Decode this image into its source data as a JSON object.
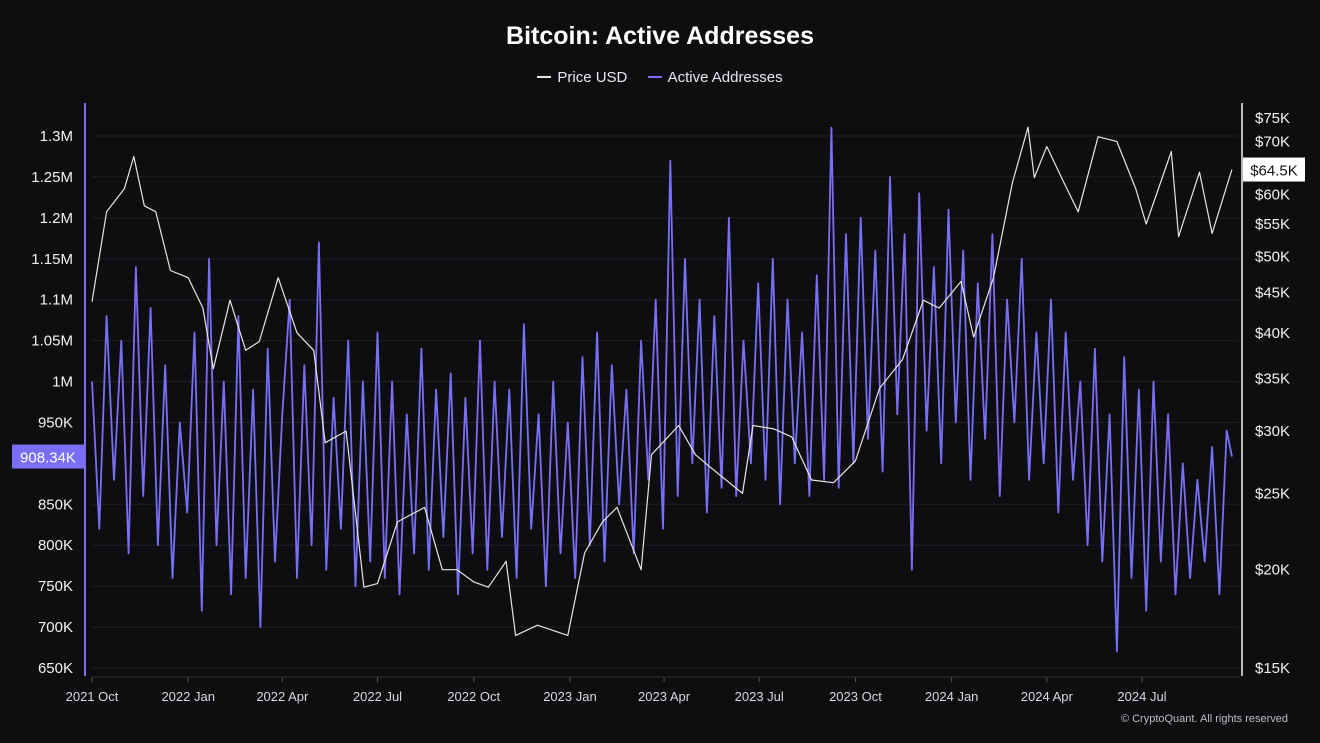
{
  "chart_data": {
    "type": "line",
    "title": "Bitcoin: Active Addresses",
    "legend": [
      "Price USD",
      "Active Addresses"
    ],
    "legend_placement": "top-center",
    "grid": "horizontal",
    "colors": {
      "price": "#e6e6e6",
      "addresses": "#7b6ef6",
      "background": "#0e0e11"
    },
    "x_ticks": [
      "2021 Oct",
      "2022 Jan",
      "2022 Apr",
      "2022 Jul",
      "2022 Oct",
      "2023 Jan",
      "2023 Apr",
      "2023 Jul",
      "2023 Oct",
      "2024 Jan",
      "2024 Apr",
      "2024 Jul"
    ],
    "x_tick_dates": [
      "2021-10-01",
      "2022-01-01",
      "2022-04-01",
      "2022-07-01",
      "2022-10-01",
      "2023-01-01",
      "2023-04-01",
      "2023-07-01",
      "2023-10-01",
      "2024-01-01",
      "2024-04-01",
      "2024-07-01"
    ],
    "y_left": {
      "ticks": [
        "650K",
        "700K",
        "750K",
        "800K",
        "850K",
        "950K",
        "1M",
        "1.05M",
        "1.1M",
        "1.15M",
        "1.2M",
        "1.25M",
        "1.3M"
      ],
      "tick_values": [
        650000,
        700000,
        750000,
        800000,
        850000,
        950000,
        1000000,
        1050000,
        1100000,
        1150000,
        1200000,
        1250000,
        1300000
      ],
      "range": [
        650000,
        1300000
      ],
      "current_label": "908.34K",
      "current_value": 908340
    },
    "y_right": {
      "scale": "log",
      "ticks": [
        "$15K",
        "$20K",
        "$25K",
        "$30K",
        "$35K",
        "$40K",
        "$45K",
        "$50K",
        "$55K",
        "$60K",
        "$70K",
        "$75K"
      ],
      "tick_values": [
        15000,
        20000,
        25000,
        30000,
        35000,
        40000,
        45000,
        50000,
        55000,
        60000,
        70000,
        75000
      ],
      "range": [
        15000,
        75000
      ],
      "current_label": "$64.5K",
      "current_value": 64500
    },
    "price_series": {
      "name": "Price USD",
      "x": [
        "2021-10-01",
        "2021-10-15",
        "2021-11-01",
        "2021-11-10",
        "2021-11-20",
        "2021-12-01",
        "2021-12-15",
        "2022-01-01",
        "2022-01-15",
        "2022-01-25",
        "2022-02-10",
        "2022-02-25",
        "2022-03-10",
        "2022-03-28",
        "2022-04-15",
        "2022-05-01",
        "2022-05-12",
        "2022-06-01",
        "2022-06-18",
        "2022-07-01",
        "2022-07-20",
        "2022-08-15",
        "2022-09-01",
        "2022-09-15",
        "2022-10-01",
        "2022-10-15",
        "2022-11-01",
        "2022-11-10",
        "2022-12-01",
        "2022-12-30",
        "2023-01-15",
        "2023-02-01",
        "2023-02-15",
        "2023-03-10",
        "2023-03-20",
        "2023-04-15",
        "2023-05-01",
        "2023-05-15",
        "2023-06-15",
        "2023-06-25",
        "2023-07-15",
        "2023-08-01",
        "2023-08-20",
        "2023-09-10",
        "2023-10-01",
        "2023-10-24",
        "2023-11-15",
        "2023-12-05",
        "2023-12-20",
        "2024-01-10",
        "2024-01-22",
        "2024-02-10",
        "2024-02-28",
        "2024-03-14",
        "2024-03-20",
        "2024-04-01",
        "2024-04-15",
        "2024-05-01",
        "2024-05-20",
        "2024-06-07",
        "2024-06-25",
        "2024-07-05",
        "2024-07-29",
        "2024-08-05",
        "2024-08-25",
        "2024-09-06",
        "2024-09-25"
      ],
      "y": [
        43800,
        57000,
        61000,
        67000,
        58000,
        57000,
        48000,
        47000,
        43000,
        36000,
        44000,
        38000,
        39000,
        47000,
        40000,
        38000,
        29000,
        30000,
        19000,
        19200,
        23000,
        24000,
        20000,
        20000,
        19300,
        19000,
        20500,
        16500,
        17000,
        16500,
        21000,
        23000,
        24000,
        20000,
        28000,
        30500,
        28000,
        27000,
        25000,
        30500,
        30200,
        29500,
        26000,
        25800,
        27500,
        34000,
        37000,
        44000,
        43000,
        46500,
        39500,
        47000,
        62000,
        73000,
        63000,
        69000,
        63000,
        57000,
        71000,
        70000,
        61000,
        55000,
        68000,
        53000,
        64000,
        53500,
        64500
      ]
    },
    "address_series": {
      "name": "Active Addresses",
      "x": [
        "2021-10-01",
        "2021-10-08",
        "2021-10-15",
        "2021-10-22",
        "2021-10-29",
        "2021-11-05",
        "2021-11-12",
        "2021-11-19",
        "2021-11-26",
        "2021-12-03",
        "2021-12-10",
        "2021-12-17",
        "2021-12-24",
        "2021-12-31",
        "2022-01-07",
        "2022-01-14",
        "2022-01-21",
        "2022-01-28",
        "2022-02-04",
        "2022-02-11",
        "2022-02-18",
        "2022-02-25",
        "2022-03-04",
        "2022-03-11",
        "2022-03-18",
        "2022-03-25",
        "2022-04-01",
        "2022-04-08",
        "2022-04-15",
        "2022-04-22",
        "2022-04-29",
        "2022-05-06",
        "2022-05-13",
        "2022-05-20",
        "2022-05-27",
        "2022-06-03",
        "2022-06-10",
        "2022-06-17",
        "2022-06-24",
        "2022-07-01",
        "2022-07-08",
        "2022-07-15",
        "2022-07-22",
        "2022-07-29",
        "2022-08-05",
        "2022-08-12",
        "2022-08-19",
        "2022-08-26",
        "2022-09-02",
        "2022-09-09",
        "2022-09-16",
        "2022-09-23",
        "2022-09-30",
        "2022-10-07",
        "2022-10-14",
        "2022-10-21",
        "2022-10-28",
        "2022-11-04",
        "2022-11-11",
        "2022-11-18",
        "2022-11-25",
        "2022-12-02",
        "2022-12-09",
        "2022-12-16",
        "2022-12-23",
        "2022-12-30",
        "2023-01-06",
        "2023-01-13",
        "2023-01-20",
        "2023-01-27",
        "2023-02-03",
        "2023-02-10",
        "2023-02-17",
        "2023-02-24",
        "2023-03-03",
        "2023-03-10",
        "2023-03-17",
        "2023-03-24",
        "2023-03-31",
        "2023-04-07",
        "2023-04-14",
        "2023-04-21",
        "2023-04-28",
        "2023-05-05",
        "2023-05-12",
        "2023-05-19",
        "2023-05-26",
        "2023-06-02",
        "2023-06-09",
        "2023-06-16",
        "2023-06-23",
        "2023-06-30",
        "2023-07-07",
        "2023-07-14",
        "2023-07-21",
        "2023-07-28",
        "2023-08-04",
        "2023-08-11",
        "2023-08-18",
        "2023-08-25",
        "2023-09-01",
        "2023-09-08",
        "2023-09-15",
        "2023-09-22",
        "2023-09-29",
        "2023-10-06",
        "2023-10-13",
        "2023-10-20",
        "2023-10-27",
        "2023-11-03",
        "2023-11-10",
        "2023-11-17",
        "2023-11-24",
        "2023-12-01",
        "2023-12-08",
        "2023-12-15",
        "2023-12-22",
        "2023-12-29",
        "2024-01-05",
        "2024-01-12",
        "2024-01-19",
        "2024-01-26",
        "2024-02-02",
        "2024-02-09",
        "2024-02-16",
        "2024-02-23",
        "2024-03-01",
        "2024-03-08",
        "2024-03-15",
        "2024-03-22",
        "2024-03-29",
        "2024-04-05",
        "2024-04-12",
        "2024-04-19",
        "2024-04-26",
        "2024-05-03",
        "2024-05-10",
        "2024-05-17",
        "2024-05-24",
        "2024-05-31",
        "2024-06-07",
        "2024-06-14",
        "2024-06-21",
        "2024-06-28",
        "2024-07-05",
        "2024-07-12",
        "2024-07-19",
        "2024-07-26",
        "2024-08-02",
        "2024-08-09",
        "2024-08-16",
        "2024-08-23",
        "2024-08-30",
        "2024-09-06",
        "2024-09-13",
        "2024-09-20",
        "2024-09-25"
      ],
      "y": [
        1000000,
        820000,
        1080000,
        880000,
        1050000,
        790000,
        1140000,
        860000,
        1090000,
        800000,
        1020000,
        760000,
        950000,
        840000,
        1060000,
        720000,
        1150000,
        800000,
        1000000,
        740000,
        1080000,
        760000,
        990000,
        700000,
        1040000,
        780000,
        960000,
        1100000,
        760000,
        1020000,
        800000,
        1170000,
        770000,
        980000,
        820000,
        1050000,
        750000,
        1000000,
        780000,
        1060000,
        760000,
        1000000,
        740000,
        960000,
        790000,
        1040000,
        770000,
        990000,
        810000,
        1010000,
        740000,
        980000,
        790000,
        1050000,
        770000,
        1000000,
        810000,
        990000,
        760000,
        1070000,
        820000,
        960000,
        750000,
        1000000,
        790000,
        950000,
        760000,
        1030000,
        800000,
        1060000,
        780000,
        1020000,
        850000,
        990000,
        790000,
        1050000,
        880000,
        1100000,
        820000,
        1270000,
        860000,
        1150000,
        900000,
        1100000,
        840000,
        1080000,
        870000,
        1200000,
        860000,
        1050000,
        900000,
        1120000,
        880000,
        1150000,
        850000,
        1100000,
        900000,
        1060000,
        860000,
        1130000,
        880000,
        1310000,
        870000,
        1180000,
        900000,
        1200000,
        930000,
        1160000,
        890000,
        1250000,
        960000,
        1180000,
        770000,
        1230000,
        940000,
        1140000,
        900000,
        1210000,
        950000,
        1160000,
        880000,
        1120000,
        930000,
        1180000,
        860000,
        1100000,
        950000,
        1150000,
        880000,
        1060000,
        900000,
        1100000,
        840000,
        1060000,
        880000,
        1000000,
        800000,
        1040000,
        780000,
        960000,
        670000,
        1030000,
        760000,
        990000,
        720000,
        1000000,
        780000,
        960000,
        740000,
        900000,
        760000,
        880000,
        780000,
        920000,
        740000,
        940000,
        908340
      ]
    }
  },
  "footer": {
    "copyright": "© CryptoQuant. All rights reserved"
  }
}
